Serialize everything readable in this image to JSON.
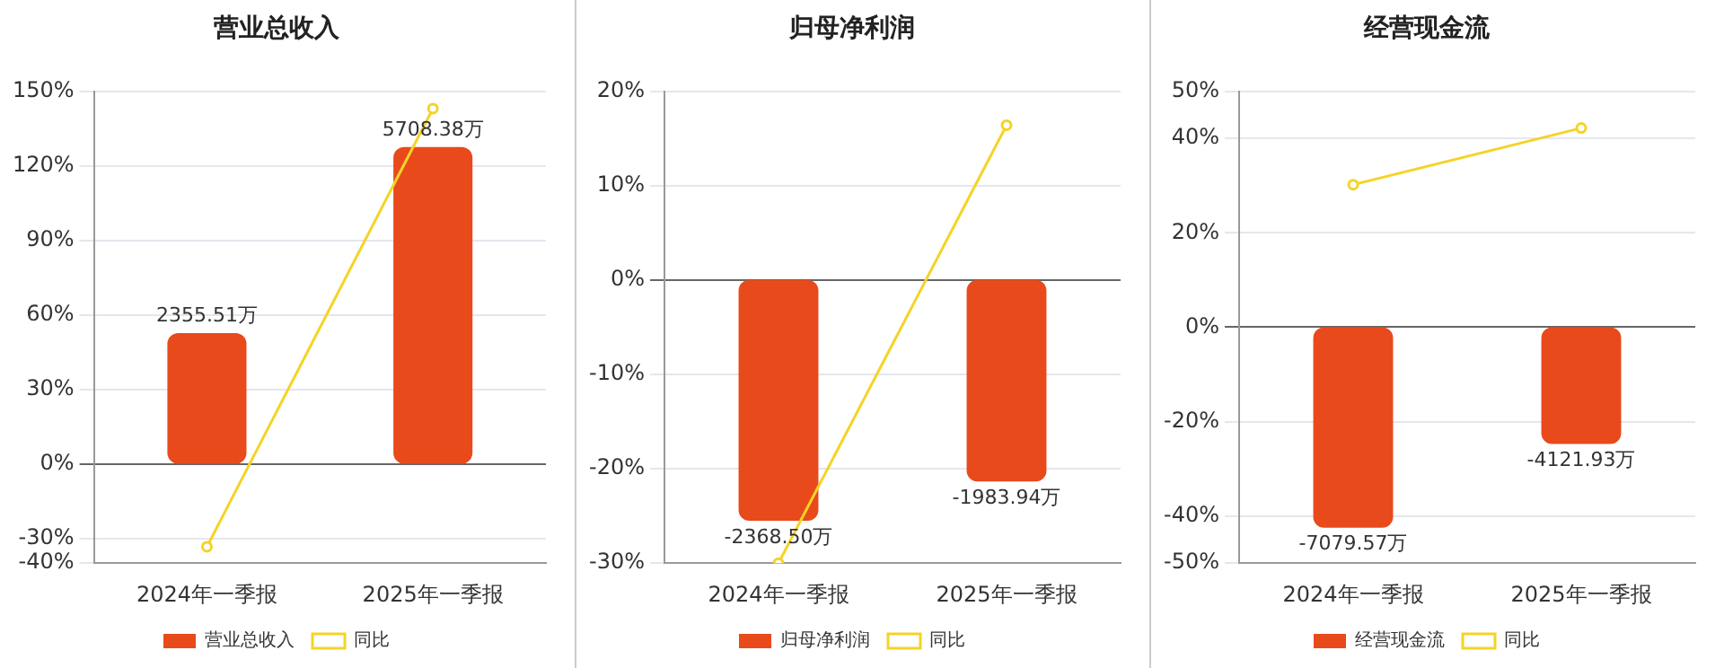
{
  "chart_data": [
    {
      "type": "bar",
      "title": "营业总收入",
      "categories": [
        "2024年一季报",
        "2025年一季报"
      ],
      "ylim": [
        -40,
        150
      ],
      "yticks": [
        {
          "value": -40,
          "label": "-40%"
        },
        {
          "value": -30,
          "label": "-30%"
        },
        {
          "value": 0,
          "label": "0%"
        },
        {
          "value": 30,
          "label": "30%"
        },
        {
          "value": 60,
          "label": "60%"
        },
        {
          "value": 90,
          "label": "90%"
        },
        {
          "value": 120,
          "label": "120%"
        },
        {
          "value": 150,
          "label": "150%"
        }
      ],
      "grid": "y",
      "legend": "bottom",
      "series": [
        {
          "name": "营业总收入",
          "axis": "y2",
          "color": "#e84a1c",
          "values": [
            2355.51,
            5708.38
          ],
          "value_labels": [
            "2355.51万",
            "5708.38万"
          ]
        },
        {
          "name": "同比",
          "type": "line",
          "axis": "y",
          "color": "#f5d327",
          "marker": "circle",
          "values": [
            -33.4,
            143
          ]
        }
      ]
    },
    {
      "type": "bar",
      "title": "归母净利润",
      "categories": [
        "2024年一季报",
        "2025年一季报"
      ],
      "ylim": [
        -30,
        20
      ],
      "yticks": [
        {
          "value": -30,
          "label": "-30%"
        },
        {
          "value": -20,
          "label": "-20%"
        },
        {
          "value": -10,
          "label": "-10%"
        },
        {
          "value": 0,
          "label": "0%"
        },
        {
          "value": 10,
          "label": "10%"
        },
        {
          "value": 20,
          "label": "20%"
        }
      ],
      "grid": "y",
      "legend": "bottom",
      "series": [
        {
          "name": "归母净利润",
          "axis": "y2",
          "color": "#e84a1c",
          "values": [
            -2368.5,
            -1983.94
          ],
          "value_labels": [
            "-2368.50万",
            "-1983.94万"
          ]
        },
        {
          "name": "同比",
          "type": "line",
          "axis": "y",
          "color": "#f5d327",
          "marker": "circle",
          "values": [
            -30,
            16.4
          ]
        }
      ]
    },
    {
      "type": "bar",
      "title": "经营现金流",
      "categories": [
        "2024年一季报",
        "2025年一季报"
      ],
      "ylim": [
        -50,
        50
      ],
      "yticks": [
        {
          "value": -50,
          "label": "-50%"
        },
        {
          "value": -40,
          "label": "-40%"
        },
        {
          "value": -20,
          "label": "-20%"
        },
        {
          "value": 0,
          "label": "0%"
        },
        {
          "value": 20,
          "label": "20%"
        },
        {
          "value": 40,
          "label": "40%"
        },
        {
          "value": 50,
          "label": "50%"
        }
      ],
      "grid": "y",
      "legend": "bottom",
      "series": [
        {
          "name": "经营现金流",
          "axis": "y2",
          "color": "#e84a1c",
          "values": [
            -7079.57,
            -4121.93
          ],
          "value_labels": [
            "-7079.57万",
            "-4121.93万"
          ]
        },
        {
          "name": "同比",
          "type": "line",
          "axis": "y",
          "color": "#f5d327",
          "marker": "circle",
          "values": [
            30.2,
            42.2
          ]
        }
      ]
    }
  ]
}
